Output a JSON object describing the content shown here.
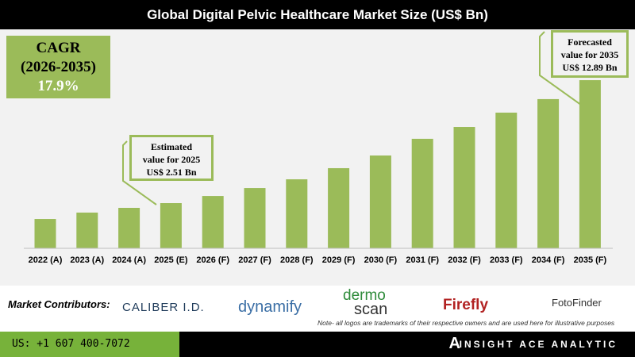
{
  "chart_data": {
    "type": "bar",
    "title": "Global Digital Pelvic Healthcare Market Size (US$ Bn)",
    "categories": [
      "2022 (A)",
      "2023 (A)",
      "2024 (A)",
      "2025 (E)",
      "2026 (F)",
      "2027 (F)",
      "2028 (F)",
      "2029 (F)",
      "2030 (F)",
      "2031 (F)",
      "2032 (F)",
      "2033 (F)",
      "2034 (F)",
      "2035 (F)"
    ],
    "values": [
      1.17,
      1.71,
      2.11,
      2.51,
      3.11,
      3.78,
      4.52,
      5.46,
      6.53,
      7.94,
      8.94,
      10.15,
      11.29,
      12.89
    ],
    "bar_color": "#9bbb59",
    "grid": false,
    "xlabel": "",
    "ylabel": ""
  },
  "cagr": {
    "label": "CAGR",
    "period": "(2026-2035)",
    "value": "17.9%"
  },
  "callout_2025": {
    "line1": "Estimated",
    "line2": "value for 2025",
    "line3": "US$ 2.51 Bn"
  },
  "callout_2035": {
    "line1": "Forecasted",
    "line2": "value for 2035",
    "line3": "US$ 12.89 Bn"
  },
  "contributors": {
    "label": "Market Contributors:",
    "logos": [
      "CALIBER I.D.",
      "dynamify",
      "dermo",
      "scan",
      "Firefly",
      "FotoFinder"
    ],
    "note": "Note- all logos are trademarks of their respective owners and are used here for illustrative purposes"
  },
  "footer": {
    "phone": "US: +1 607 400-7072",
    "brand": "INSIGHT ACE ANALYTIC"
  }
}
